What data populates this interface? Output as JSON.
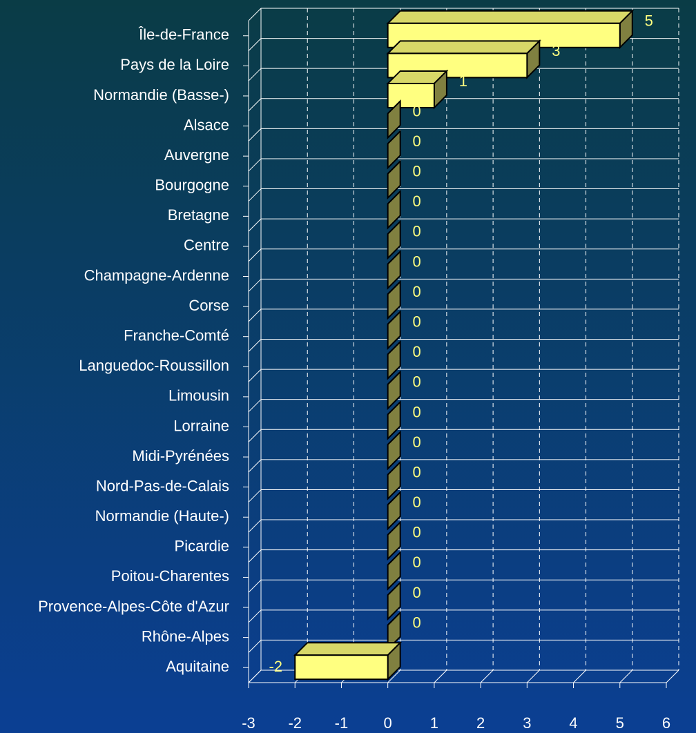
{
  "chart_data": {
    "type": "bar3d-horizontal",
    "categories": [
      "Île-de-France",
      "Pays de la Loire",
      "Normandie (Basse-)",
      "Alsace",
      "Auvergne",
      "Bourgogne",
      "Bretagne",
      "Centre",
      "Champagne-Ardenne",
      "Corse",
      "Franche-Comté",
      "Languedoc-Roussillon",
      "Limousin",
      "Lorraine",
      "Midi-Pyrénées",
      "Nord-Pas-de-Calais",
      "Normandie (Haute-)",
      "Picardie",
      "Poitou-Charentes",
      "Provence-Alpes-Côte d'Azur",
      "Rhône-Alpes",
      "Aquitaine"
    ],
    "values": [
      5,
      3,
      1,
      0,
      0,
      0,
      0,
      0,
      0,
      0,
      0,
      0,
      0,
      0,
      0,
      0,
      0,
      0,
      0,
      0,
      0,
      -2
    ],
    "color": "#ffff80",
    "xlim": [
      -3,
      6
    ],
    "xticks": [
      -3,
      -2,
      -1,
      0,
      1,
      2,
      3,
      4,
      5,
      6
    ],
    "grid": true
  }
}
